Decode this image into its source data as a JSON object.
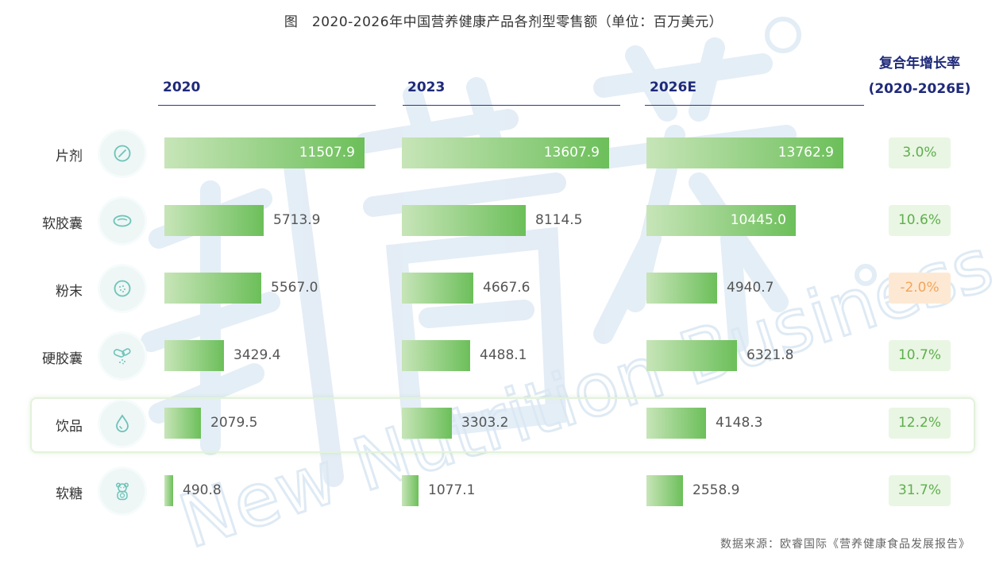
{
  "chart_data": {
    "type": "bar",
    "title": "图　2020-2026年中国营养健康产品各剂型零售额（单位：百万美元）",
    "columns": [
      "2020",
      "2023",
      "2026E"
    ],
    "categories": [
      "片剂",
      "软胶囊",
      "粉末",
      "硬胶囊",
      "饮品",
      "软糖"
    ],
    "icons": [
      "tablet-icon",
      "softgel-icon",
      "powder-icon",
      "capsule-icon",
      "drink-drop-icon",
      "gummy-bear-icon"
    ],
    "series": [
      {
        "name": "2020",
        "values": [
          11507.9,
          5713.9,
          5567.0,
          3429.4,
          2079.5,
          490.8
        ]
      },
      {
        "name": "2023",
        "values": [
          13607.9,
          8114.5,
          4667.6,
          4488.1,
          3303.2,
          1077.1
        ]
      },
      {
        "name": "2026E",
        "values": [
          13762.9,
          10445.0,
          4940.7,
          6321.8,
          4148.3,
          2558.9
        ]
      }
    ],
    "value_labels": [
      [
        "11507.9",
        "5713.9",
        "5567.0",
        "3429.4",
        "2079.5",
        "490.8"
      ],
      [
        "13607.9",
        "8114.5",
        "4667.6",
        "4488.1",
        "3303.2",
        "1077.1"
      ],
      [
        "13762.9",
        "10445.0",
        "4940.7",
        "6321.8",
        "4148.3",
        "2558.9"
      ]
    ],
    "cagr_header_line1": "复合年增长率",
    "cagr_header_line2": "(2020-2026E)",
    "cagr": [
      "3.0%",
      "10.6%",
      "-2.0%",
      "10.7%",
      "12.2%",
      "31.7%"
    ],
    "highlighted_category": "饮品",
    "colors": {
      "bar_start": "#c7e5b8",
      "bar_end": "#6cbf5a",
      "header": "#1f2a7a",
      "cagr_positive_bg": "#e9f6e3",
      "cagr_positive_text": "#5fae4e",
      "cagr_negative_bg": "#fde9d3",
      "cagr_negative_text": "#f2a55c"
    },
    "source": "数据来源：欧睿国际《营养健康食品发展报告》",
    "watermark": "新营养 New Nutrition Business"
  }
}
